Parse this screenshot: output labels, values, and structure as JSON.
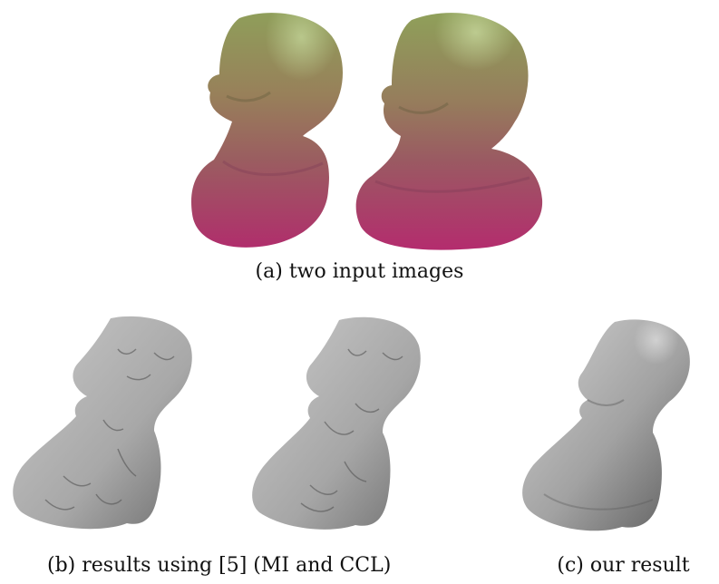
{
  "figure": {
    "panel_a": {
      "caption": "(a) two input images",
      "images": [
        {
          "name": "input-image-1",
          "icon": "rendered-bust-photo"
        },
        {
          "name": "input-image-2",
          "icon": "rendered-bust-photo"
        }
      ]
    },
    "panel_b": {
      "caption": "(b) results using [5] (MI and CCL)",
      "images": [
        {
          "name": "reconstruction-mi",
          "icon": "gray-mesh-rough"
        },
        {
          "name": "reconstruction-ccl",
          "icon": "gray-mesh-rough"
        }
      ]
    },
    "panel_c": {
      "caption": "(c) our result",
      "images": [
        {
          "name": "reconstruction-ours",
          "icon": "gray-mesh-smooth"
        }
      ]
    }
  }
}
